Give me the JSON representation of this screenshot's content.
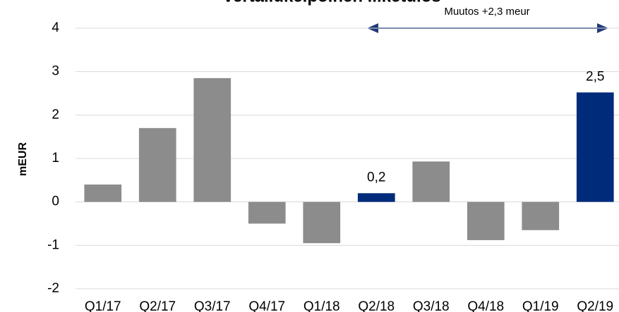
{
  "chart_data": {
    "type": "bar",
    "title": "Vertailukelpoinen liiketulos",
    "y_label": "mEUR",
    "annotation": "Muutos +2,3 meur",
    "categories": [
      "Q1/17",
      "Q2/17",
      "Q3/17",
      "Q4/17",
      "Q1/18",
      "Q2/18",
      "Q3/18",
      "Q4/18",
      "Q1/19",
      "Q2/19"
    ],
    "values": [
      0.4,
      1.7,
      2.85,
      -0.5,
      -0.95,
      0.2,
      0.93,
      -0.88,
      -0.65,
      2.52
    ],
    "value_labels": [
      null,
      null,
      null,
      null,
      null,
      "0,2",
      null,
      null,
      null,
      "2,5"
    ],
    "colors": [
      "#8c8c8c",
      "#8c8c8c",
      "#8c8c8c",
      "#8c8c8c",
      "#8c8c8c",
      "#002a7a",
      "#8c8c8c",
      "#8c8c8c",
      "#8c8c8c",
      "#002a7a"
    ],
    "ylim": [
      -2,
      4
    ],
    "yticks": [
      -2,
      -1,
      0,
      1,
      2,
      3,
      4
    ],
    "grid": true
  }
}
